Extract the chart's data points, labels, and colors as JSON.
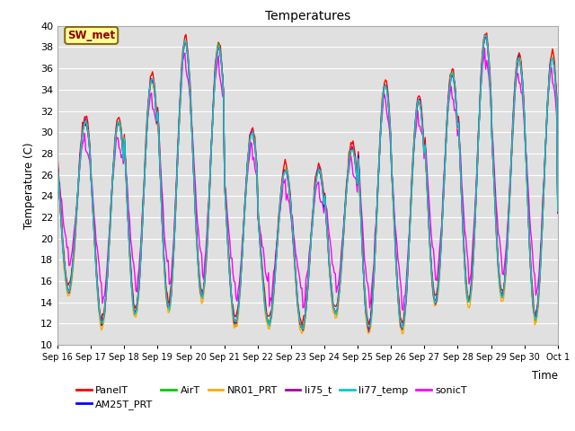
{
  "title": "Temperatures",
  "xlabel": "Time",
  "ylabel": "Temperature (C)",
  "ylim": [
    10,
    40
  ],
  "yticks": [
    10,
    12,
    14,
    16,
    18,
    20,
    22,
    24,
    26,
    28,
    30,
    32,
    34,
    36,
    38,
    40
  ],
  "bg_color": "#e0e0e0",
  "annotation_text": "SW_met",
  "lines": [
    {
      "label": "PanelT",
      "color": "#ff0000",
      "lw": 1.0
    },
    {
      "label": "AM25T_PRT",
      "color": "#0000ff",
      "lw": 1.0
    },
    {
      "label": "AirT",
      "color": "#00cc00",
      "lw": 1.0
    },
    {
      "label": "NR01_PRT",
      "color": "#ffaa00",
      "lw": 1.0
    },
    {
      "label": "li75_t",
      "color": "#aa00aa",
      "lw": 1.0
    },
    {
      "label": "li77_temp",
      "color": "#00cccc",
      "lw": 1.0
    },
    {
      "label": "sonicT",
      "color": "#ff00ff",
      "lw": 1.0
    }
  ],
  "x_tick_labels": [
    "Sep 16",
    "Sep 17",
    "Sep 18",
    "Sep 19",
    "Sep 20",
    "Sep 21",
    "Sep 22",
    "Sep 23",
    "Sep 24",
    "Sep 25",
    "Sep 26",
    "Sep 27",
    "Sep 28",
    "Sep 29",
    "Sep 30",
    "Oct 1"
  ],
  "day_peaks": [
    31,
    31,
    35,
    38.5,
    38,
    30,
    26.5,
    26.5,
    28.5,
    34.5,
    33,
    35.5,
    39,
    37,
    37,
    26
  ],
  "day_mins": [
    15,
    12,
    13,
    13.5,
    14.5,
    12,
    12,
    11.5,
    13,
    11.5,
    11.5,
    14,
    14,
    14.5,
    12.5,
    12.5
  ],
  "n_points": 480,
  "legend_ncol": 6,
  "legend_fontsize": 8
}
